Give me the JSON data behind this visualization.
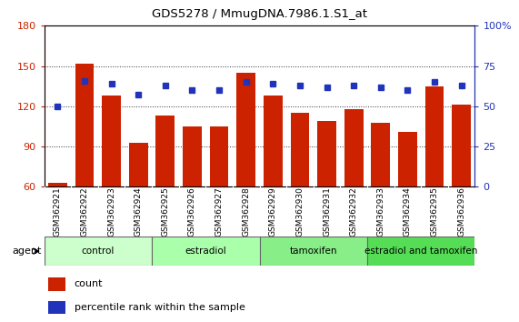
{
  "title": "GDS5278 / MmugDNA.7986.1.S1_at",
  "samples": [
    "GSM362921",
    "GSM362922",
    "GSM362923",
    "GSM362924",
    "GSM362925",
    "GSM362926",
    "GSM362927",
    "GSM362928",
    "GSM362929",
    "GSM362930",
    "GSM362931",
    "GSM362932",
    "GSM362933",
    "GSM362934",
    "GSM362935",
    "GSM362936"
  ],
  "counts": [
    63,
    152,
    128,
    93,
    113,
    105,
    105,
    145,
    128,
    115,
    109,
    118,
    108,
    101,
    135,
    121
  ],
  "percentiles": [
    50,
    66,
    64,
    57,
    63,
    60,
    60,
    65,
    64,
    63,
    62,
    63,
    62,
    60,
    65,
    63
  ],
  "bar_color": "#cc2200",
  "dot_color": "#2233bb",
  "ylim_left": [
    60,
    180
  ],
  "ylim_right": [
    0,
    100
  ],
  "yticks_left": [
    60,
    90,
    120,
    150,
    180
  ],
  "yticks_right": [
    0,
    25,
    50,
    75,
    100
  ],
  "groups": [
    {
      "label": "control",
      "start": 0,
      "end": 4,
      "color": "#ccffcc"
    },
    {
      "label": "estradiol",
      "start": 4,
      "end": 8,
      "color": "#aaffaa"
    },
    {
      "label": "tamoxifen",
      "start": 8,
      "end": 12,
      "color": "#88ee88"
    },
    {
      "label": "estradiol and tamoxifen",
      "start": 12,
      "end": 16,
      "color": "#55dd55"
    }
  ],
  "agent_label": "agent",
  "legend_count_label": "count",
  "legend_percentile_label": "percentile rank within the sample",
  "tick_label_color_left": "#cc2200",
  "tick_label_color_right": "#2233bb",
  "xtick_bg": "#cccccc"
}
